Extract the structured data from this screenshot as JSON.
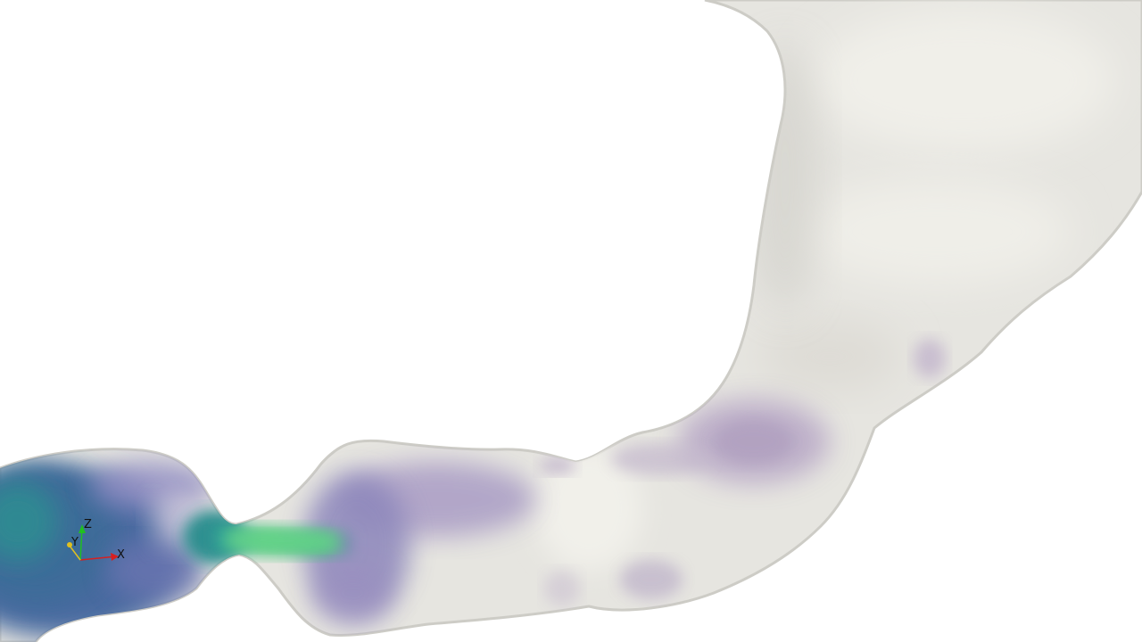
{
  "viewport": {
    "background": "#ffffff",
    "colors": {
      "surface": "#e9e8e3",
      "surface_edge": "#cfcec8",
      "purple_tint": "#b7a8c6",
      "blue_core": "#3f5f96",
      "green_jet": "#4fc98a",
      "teal": "#2b8c8c"
    }
  },
  "orientation_axes": {
    "x_label": "X",
    "y_label": "Y",
    "z_label": "Z",
    "x_color": "#d62020",
    "y_color": "#e0c020",
    "z_color": "#20c020"
  }
}
